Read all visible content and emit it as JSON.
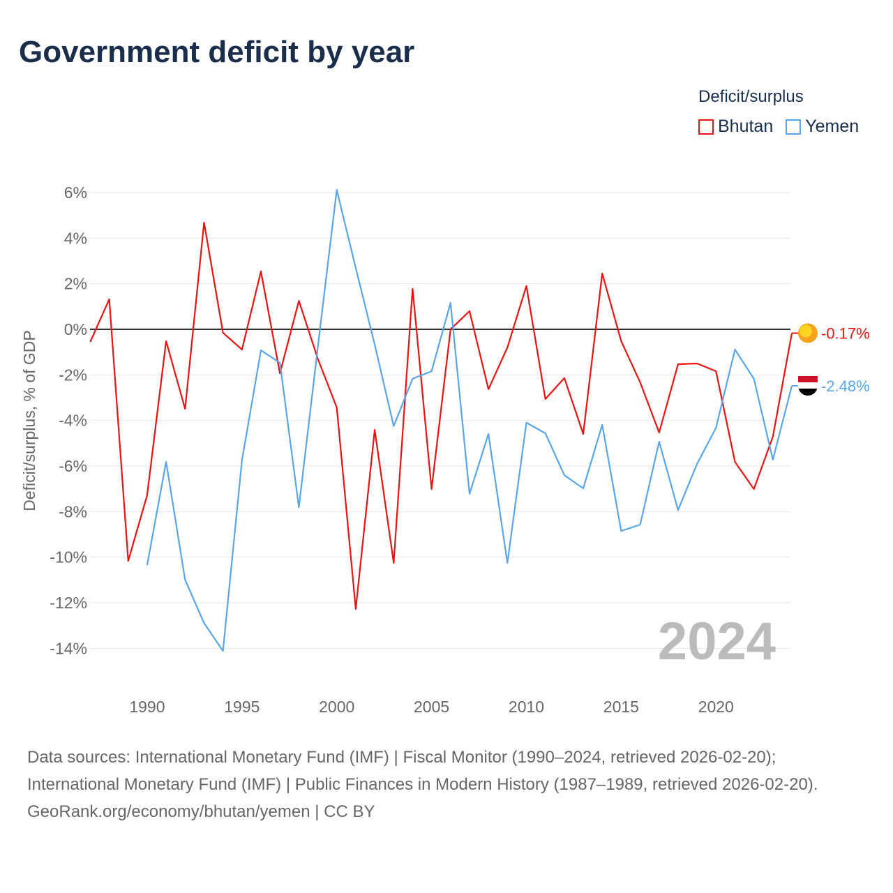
{
  "title": "Government deficit by year",
  "legend": {
    "title": "Deficit/surplus",
    "items": [
      {
        "label": "Bhutan",
        "color": "#ee1111"
      },
      {
        "label": "Yemen",
        "color": "#5aa5ea"
      }
    ]
  },
  "footer": {
    "sources": "Data sources: International Monetary Fund (IMF) | Fiscal Monitor (1990–2024, retrieved 2026-02-20); International Monetary Fund (IMF) | Public Finances in Modern History (1987–1989, retrieved 2026-02-20).",
    "credit": "GeoRank.org/economy/bhutan/yemen | CC BY"
  },
  "chart_data": {
    "type": "line",
    "title": "Government deficit by year",
    "ylabel": "Deficit/surplus, % of GDP",
    "xlabel": "",
    "xlim": [
      1987,
      2024
    ],
    "ylim": [
      -14,
      6
    ],
    "yticks": [
      6,
      4,
      2,
      0,
      -2,
      -4,
      -6,
      -8,
      -10,
      -12,
      -14
    ],
    "ytick_labels": [
      "6%",
      "4%",
      "2%",
      "0%",
      "-2%",
      "-4%",
      "-6%",
      "-8%",
      "-10%",
      "-12%",
      "-14%"
    ],
    "xticks": [
      1990,
      1995,
      2000,
      2005,
      2010,
      2015,
      2020
    ],
    "xtick_labels": [
      "1990",
      "1995",
      "2000",
      "2005",
      "2010",
      "2015",
      "2020"
    ],
    "year_watermark": "2024",
    "series": [
      {
        "name": "Bhutan",
        "color": "#ee1111",
        "end_label": "-0.17%",
        "x": [
          1987,
          1988,
          1989,
          1990,
          1991,
          1992,
          1993,
          1994,
          1995,
          1996,
          1997,
          1998,
          1999,
          2000,
          2001,
          2002,
          2003,
          2004,
          2005,
          2006,
          2007,
          2008,
          2009,
          2010,
          2011,
          2012,
          2013,
          2014,
          2015,
          2016,
          2017,
          2018,
          2019,
          2020,
          2021,
          2022,
          2023,
          2024
        ],
        "values": [
          -0.55,
          1.32,
          -10.16,
          -7.28,
          -0.52,
          -3.49,
          4.68,
          -0.15,
          -0.89,
          2.54,
          -1.93,
          1.25,
          -1.29,
          -3.43,
          -12.27,
          -4.41,
          -10.25,
          1.78,
          -7.01,
          0.0,
          0.8,
          -2.63,
          -0.8,
          1.9,
          -3.06,
          -2.14,
          -4.59,
          2.45,
          -0.52,
          -2.33,
          -4.53,
          -1.53,
          -1.5,
          -1.84,
          -5.82,
          -7.01,
          -4.71,
          -0.17
        ]
      },
      {
        "name": "Yemen",
        "color": "#5aa5ea",
        "end_label": "-2.48%",
        "x": [
          1990,
          1991,
          1992,
          1993,
          1994,
          1995,
          1996,
          1997,
          1998,
          1999,
          2000,
          2001,
          2002,
          2003,
          2004,
          2005,
          2006,
          2007,
          2008,
          2009,
          2010,
          2011,
          2012,
          2013,
          2014,
          2015,
          2016,
          2017,
          2018,
          2019,
          2020,
          2021,
          2022,
          2023,
          2024
        ],
        "values": [
          -10.35,
          -5.82,
          -10.99,
          -12.89,
          -14.11,
          -5.75,
          -0.92,
          -1.47,
          -7.81,
          -0.8,
          6.12,
          2.69,
          -0.67,
          -4.25,
          -2.17,
          -1.84,
          1.16,
          -7.22,
          -4.59,
          -10.25,
          -4.1,
          -4.56,
          -6.4,
          -6.98,
          -4.19,
          -8.85,
          -8.57,
          -4.93,
          -7.93,
          -5.91,
          -4.32,
          -0.89,
          -2.17,
          -5.72,
          -2.48
        ]
      }
    ]
  }
}
